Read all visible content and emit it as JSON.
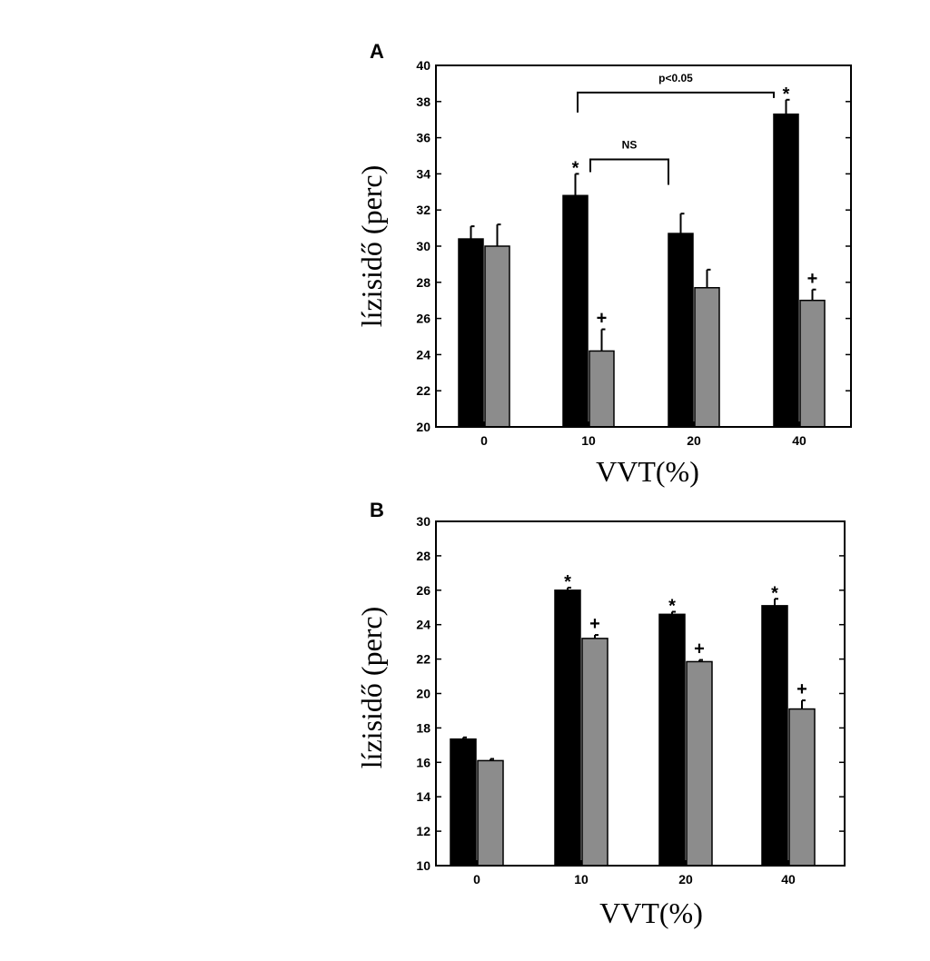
{
  "chart_data": [
    {
      "type": "bar",
      "panel_label": "A",
      "categories": [
        "0",
        "10",
        "20",
        "40"
      ],
      "series": [
        {
          "color": "#000000",
          "values": [
            30.4,
            32.8,
            30.7,
            37.3
          ],
          "errors": [
            0.7,
            1.2,
            1.1,
            0.8
          ],
          "markers": [
            "",
            "*",
            "",
            "*"
          ]
        },
        {
          "color": "#8c8c8c",
          "values": [
            30.0,
            24.2,
            27.7,
            27.0
          ],
          "errors": [
            1.2,
            1.2,
            1.0,
            0.6
          ],
          "markers": [
            "",
            "+",
            "",
            "+"
          ]
        }
      ],
      "xlabel": "VVT(%)",
      "ylabel": "lízisidő (perc)",
      "ylim": [
        20,
        40
      ],
      "yticks": [
        20,
        22,
        24,
        26,
        28,
        30,
        32,
        34,
        36,
        38,
        40
      ],
      "annotations": [
        {
          "text": "NS",
          "from": "10",
          "to": "20"
        },
        {
          "text": "p<0.05",
          "from": "10",
          "to": "40"
        }
      ]
    },
    {
      "type": "bar",
      "panel_label": "B",
      "categories": [
        "0",
        "10",
        "20",
        "40"
      ],
      "series": [
        {
          "color": "#000000",
          "values": [
            17.35,
            26.0,
            24.6,
            25.1
          ],
          "errors": [
            0.1,
            0.15,
            0.15,
            0.4
          ],
          "markers": [
            "",
            "*",
            "*",
            "*"
          ]
        },
        {
          "color": "#8c8c8c",
          "values": [
            16.1,
            23.2,
            21.85,
            19.1
          ],
          "errors": [
            0.1,
            0.2,
            0.1,
            0.5
          ],
          "markers": [
            "",
            "+",
            "+",
            "+"
          ]
        }
      ],
      "xlabel": "VVT(%)",
      "ylabel": "lízisidő (perc)",
      "ylim": [
        10,
        30
      ],
      "yticks": [
        10,
        12,
        14,
        16,
        18,
        20,
        22,
        24,
        26,
        28,
        30
      ],
      "annotations": []
    }
  ]
}
